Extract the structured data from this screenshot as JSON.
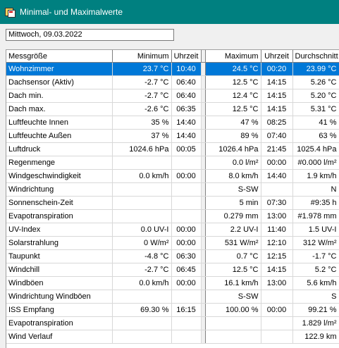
{
  "window": {
    "title": "Minimal- und Maximalwerte",
    "icon": "app-icon"
  },
  "date_field": {
    "value": "Mittwoch, 09.03.2022"
  },
  "table": {
    "headers": [
      "Messgröße",
      "Minimum",
      "Uhrzeit",
      "Maximum",
      "Uhrzeit",
      "Durchschnitt"
    ],
    "selected_row": 0,
    "rows": [
      [
        "Wohnzimmer",
        "23.7 °C",
        "10:40",
        "24.5 °C",
        "00:20",
        "23.99 °C"
      ],
      [
        "Dachsensor (Aktiv)",
        "-2.7 °C",
        "06:40",
        "12.5 °C",
        "14:15",
        "5.26 °C"
      ],
      [
        "Dach min.",
        "-2.7 °C",
        "06:40",
        "12.4 °C",
        "14:15",
        "5.20 °C"
      ],
      [
        "Dach max.",
        "-2.6 °C",
        "06:35",
        "12.5 °C",
        "14:15",
        "5.31 °C"
      ],
      [
        "Luftfeuchte Innen",
        "35 %",
        "14:40",
        "47 %",
        "08:25",
        "41 %"
      ],
      [
        "Luftfeuchte Außen",
        "37 %",
        "14:40",
        "89 %",
        "07:40",
        "63 %"
      ],
      [
        "Luftdruck",
        "1024.6 hPa",
        "00:05",
        "1026.4 hPa",
        "21:45",
        "1025.4 hPa"
      ],
      [
        "Regenmenge",
        "",
        "",
        "0.0 l/m²",
        "00:00",
        "#0.000 l/m²"
      ],
      [
        "Windgeschwindigkeit",
        "0.0 km/h",
        "00:00",
        "8.0 km/h",
        "14:40",
        "1.9 km/h"
      ],
      [
        "Windrichtung",
        "",
        "",
        "S-SW",
        "",
        "N"
      ],
      [
        "Sonnenschein-Zeit",
        "",
        "",
        "5 min",
        "07:30",
        "#9:35 h"
      ],
      [
        "Evapotranspiration",
        "",
        "",
        "0.279 mm",
        "13:00",
        "#1.978 mm"
      ],
      [
        "UV-Index",
        "0.0 UV-I",
        "00:00",
        "2.2 UV-I",
        "11:40",
        "1.5 UV-I"
      ],
      [
        "Solarstrahlung",
        "0 W/m²",
        "00:00",
        "531 W/m²",
        "12:10",
        "312 W/m²"
      ],
      [
        "Taupunkt",
        "-4.8 °C",
        "06:30",
        "0.7 °C",
        "12:15",
        "-1.7 °C"
      ],
      [
        "Windchill",
        "-2.7 °C",
        "06:45",
        "12.5 °C",
        "14:15",
        "5.2 °C"
      ],
      [
        "Windböen",
        "0.0 km/h",
        "00:00",
        "16.1 km/h",
        "13:00",
        "5.6 km/h"
      ],
      [
        "Windrichtung Windböen",
        "",
        "",
        "S-SW",
        "",
        "S"
      ],
      [
        "ISS Empfang",
        "69.30 %",
        "16:15",
        "100.00 %",
        "00:00",
        "99.21 %"
      ],
      [
        "Evapotranspiration",
        "",
        "",
        "",
        "",
        "1.829 l/m²"
      ],
      [
        "Wind Verlauf",
        "",
        "",
        "",
        "",
        "122.9 km"
      ]
    ]
  },
  "colors": {
    "titlebar": "#008080",
    "selection": "#0078d7"
  }
}
